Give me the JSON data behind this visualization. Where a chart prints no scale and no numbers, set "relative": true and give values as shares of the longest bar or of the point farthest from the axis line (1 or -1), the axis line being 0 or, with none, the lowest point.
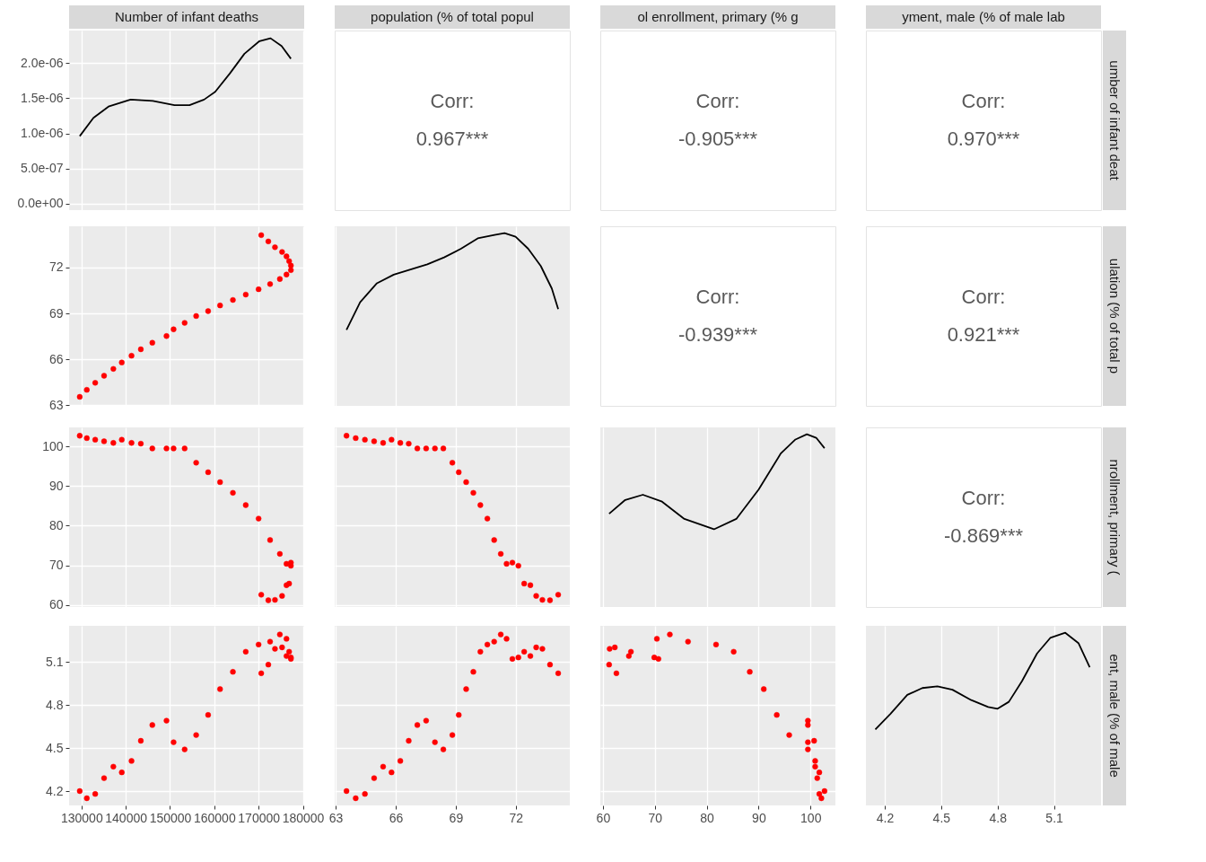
{
  "chart_data": [
    {
      "type": "line",
      "title": "Number of infant deaths",
      "x": [
        129600,
        132700,
        136100,
        141100,
        146100,
        151000,
        154400,
        157700,
        160200,
        163500,
        166800,
        170200,
        172700,
        175200,
        177300
      ],
      "series": [
        {
          "color": "#000000",
          "values": [
            9.6e-07,
            1.22e-06,
            1.38e-06,
            1.48e-06,
            1.46e-06,
            1.4e-06,
            1.4e-06,
            1.48e-06,
            1.59e-06,
            1.85e-06,
            2.13e-06,
            2.31e-06,
            2.35e-06,
            2.24e-06,
            2.06e-06
          ]
        }
      ],
      "xlim": [
        127200,
        180300
      ],
      "xticks": [
        130000,
        140000,
        150000,
        160000,
        170000,
        180000
      ],
      "ylim": [
        -9e-08,
        2.46e-06
      ],
      "yticks": [
        {
          "value": 0,
          "label": "0.0e+00"
        },
        {
          "value": 5e-07,
          "label": "5.0e-07"
        },
        {
          "value": 1e-06,
          "label": "1.0e-06"
        },
        {
          "value": 1.5e-06,
          "label": "1.5e-06"
        },
        {
          "value": 2e-06,
          "label": "2.0e-06"
        }
      ],
      "grid": true,
      "tick_labels": "y"
    },
    {
      "type": "other",
      "title": "population (% of total popul",
      "annotations": [
        "Corr:",
        "0.967***"
      ]
    },
    {
      "type": "other",
      "title": "ol enrollment, primary (% g",
      "annotations": [
        "Corr:",
        "-0.905***"
      ]
    },
    {
      "type": "other",
      "title": "yment, male (% of male lab",
      "y2label": "umber of infant deat",
      "annotations": [
        "Corr:",
        "0.970***"
      ]
    },
    {
      "type": "scatter",
      "marker": "circle",
      "x": [
        129600,
        131200,
        133100,
        135100,
        137200,
        139100,
        141300,
        143400,
        146000,
        149200,
        150800,
        153300,
        155900,
        158600,
        161300,
        164200,
        167100,
        170000,
        172600,
        174800,
        176300,
        177300,
        177300,
        176900,
        176300,
        175300,
        173700,
        172200,
        170600
      ],
      "series": [
        {
          "color": "#ff0000",
          "values": [
            63.54,
            64.0,
            64.46,
            64.92,
            65.37,
            65.79,
            66.23,
            66.65,
            67.08,
            67.52,
            67.96,
            68.38,
            68.83,
            69.15,
            69.52,
            69.88,
            70.23,
            70.58,
            70.92,
            71.25,
            71.54,
            71.83,
            72.13,
            72.42,
            72.73,
            73.02,
            73.33,
            73.71,
            74.12
          ]
        }
      ],
      "xlim": [
        127200,
        180300
      ],
      "xticks": [
        130000,
        140000,
        150000,
        160000,
        170000,
        180000
      ],
      "ylim": [
        62.95,
        74.7
      ],
      "yticks": [
        63,
        66,
        69,
        72
      ],
      "grid": true,
      "tick_labels": "y"
    },
    {
      "type": "line",
      "relative": true,
      "x": [
        63.54,
        64.22,
        65.06,
        65.9,
        66.74,
        67.58,
        68.42,
        69.26,
        70.1,
        70.94,
        71.44,
        71.99,
        72.62,
        73.25,
        73.8,
        74.12
      ],
      "series": [
        {
          "color": "#000000",
          "values": [
            0.44,
            0.6,
            0.71,
            0.76,
            0.79,
            0.82,
            0.86,
            0.91,
            0.97,
            0.99,
            1,
            0.98,
            0.91,
            0.81,
            0.68,
            0.56
          ]
        }
      ],
      "xlim": [
        62.95,
        74.7
      ],
      "xticks": [
        63,
        66,
        69,
        72
      ],
      "grid": "x",
      "tick_labels": false
    },
    {
      "type": "other",
      "annotations": [
        "Corr:",
        "-0.939***"
      ]
    },
    {
      "type": "other",
      "y2label": "ulation (% of total p",
      "annotations": [
        "Corr:",
        "0.921***"
      ]
    },
    {
      "type": "scatter",
      "marker": "circle",
      "x": [
        129600,
        131200,
        133100,
        135100,
        137200,
        139100,
        141300,
        143400,
        146000,
        149200,
        150800,
        153300,
        155900,
        158600,
        161300,
        164200,
        167100,
        170000,
        172600,
        174800,
        176300,
        177300,
        177300,
        176900,
        176300,
        175300,
        173700,
        172200,
        170600
      ],
      "series": [
        {
          "color": "#ff0000",
          "values": [
            102.7,
            102.1,
            101.7,
            101.3,
            100.9,
            101.7,
            100.9,
            100.7,
            99.5,
            99.5,
            99.5,
            99.5,
            95.9,
            93.5,
            91.0,
            88.3,
            85.2,
            81.8,
            76.4,
            72.9,
            70.4,
            70.7,
            69.9,
            65.4,
            65.0,
            62.3,
            61.3,
            61.2,
            62.6
          ]
        }
      ],
      "xlim": [
        127200,
        180300
      ],
      "xticks": [
        130000,
        140000,
        150000,
        160000,
        170000,
        180000
      ],
      "ylim": [
        59.5,
        104.8
      ],
      "yticks": [
        60,
        70,
        80,
        90,
        100
      ],
      "grid": true,
      "tick_labels": "y"
    },
    {
      "type": "scatter",
      "marker": "circle",
      "x": [
        63.54,
        64.0,
        64.46,
        64.92,
        65.37,
        65.79,
        66.23,
        66.65,
        67.08,
        67.52,
        67.96,
        68.38,
        68.83,
        69.15,
        69.52,
        69.88,
        70.23,
        70.58,
        70.92,
        71.25,
        71.54,
        71.83,
        72.13,
        72.42,
        72.73,
        73.02,
        73.33,
        73.71,
        74.12
      ],
      "series": [
        {
          "color": "#ff0000",
          "values": [
            102.7,
            102.1,
            101.7,
            101.3,
            100.9,
            101.7,
            100.9,
            100.7,
            99.5,
            99.5,
            99.5,
            99.5,
            95.9,
            93.5,
            91.0,
            88.3,
            85.2,
            81.8,
            76.4,
            72.9,
            70.4,
            70.7,
            69.9,
            65.4,
            65.0,
            62.3,
            61.3,
            61.2,
            62.6
          ]
        }
      ],
      "xlim": [
        62.95,
        74.7
      ],
      "xticks": [
        63,
        66,
        69,
        72
      ],
      "ylim": [
        59.5,
        104.8
      ],
      "yticks": [
        60,
        70,
        80,
        90,
        100
      ],
      "grid": true,
      "tick_labels": false
    },
    {
      "type": "line",
      "relative": true,
      "x": [
        61.2,
        64.3,
        67.7,
        71.4,
        75.7,
        81.4,
        85.7,
        90.0,
        94.3,
        97.1,
        99.3,
        101.1,
        102.7
      ],
      "series": [
        {
          "color": "#000000",
          "values": [
            0.54,
            0.62,
            0.65,
            0.61,
            0.51,
            0.45,
            0.51,
            0.68,
            0.89,
            0.97,
            1,
            0.98,
            0.92
          ]
        }
      ],
      "xlim": [
        59.5,
        104.8
      ],
      "xticks": [
        60,
        70,
        80,
        90,
        100
      ],
      "grid": "x",
      "tick_labels": false
    },
    {
      "type": "other",
      "y2label": "nrollment, primary (",
      "annotations": [
        "Corr:",
        "-0.869***"
      ]
    },
    {
      "type": "scatter",
      "marker": "circle",
      "x": [
        129600,
        131200,
        133100,
        135100,
        137200,
        139100,
        141300,
        143400,
        146000,
        149200,
        150800,
        153300,
        155900,
        158600,
        161300,
        164200,
        167100,
        170000,
        172600,
        174800,
        176300,
        177300,
        177300,
        176900,
        176300,
        175300,
        173700,
        172200,
        170600
      ],
      "series": [
        {
          "color": "#ff0000",
          "values": [
            4.2,
            4.15,
            4.18,
            4.29,
            4.37,
            4.33,
            4.41,
            4.55,
            4.66,
            4.69,
            4.54,
            4.49,
            4.59,
            4.73,
            4.91,
            5.03,
            5.17,
            5.22,
            5.24,
            5.29,
            5.26,
            5.12,
            5.13,
            5.17,
            5.14,
            5.2,
            5.19,
            5.08,
            5.02
          ]
        }
      ],
      "xlim": [
        127200,
        180300
      ],
      "xticks": [
        130000,
        140000,
        150000,
        160000,
        170000,
        180000
      ],
      "ylim": [
        4.1,
        5.35
      ],
      "yticks": [
        4.2,
        4.5,
        4.8,
        5.1
      ],
      "grid": true
    },
    {
      "type": "scatter",
      "marker": "circle",
      "x": [
        63.54,
        64.0,
        64.46,
        64.92,
        65.37,
        65.79,
        66.23,
        66.65,
        67.08,
        67.52,
        67.96,
        68.38,
        68.83,
        69.15,
        69.52,
        69.88,
        70.23,
        70.58,
        70.92,
        71.25,
        71.54,
        71.83,
        72.13,
        72.42,
        72.73,
        73.02,
        73.33,
        73.71,
        74.12
      ],
      "series": [
        {
          "color": "#ff0000",
          "values": [
            4.2,
            4.15,
            4.18,
            4.29,
            4.37,
            4.33,
            4.41,
            4.55,
            4.66,
            4.69,
            4.54,
            4.49,
            4.59,
            4.73,
            4.91,
            5.03,
            5.17,
            5.22,
            5.24,
            5.29,
            5.26,
            5.12,
            5.13,
            5.17,
            5.14,
            5.2,
            5.19,
            5.08,
            5.02
          ]
        }
      ],
      "xlim": [
        62.95,
        74.7
      ],
      "xticks": [
        63,
        66,
        69,
        72
      ],
      "ylim": [
        4.1,
        5.35
      ],
      "yticks": [
        4.2,
        4.5,
        4.8,
        5.1
      ],
      "grid": true,
      "tick_labels": "x"
    },
    {
      "type": "scatter",
      "marker": "circle",
      "x": [
        102.7,
        102.1,
        101.7,
        101.3,
        100.9,
        101.7,
        100.9,
        100.7,
        99.5,
        99.5,
        99.5,
        99.5,
        95.9,
        93.5,
        91.0,
        88.3,
        85.2,
        81.8,
        76.4,
        72.9,
        70.4,
        70.7,
        69.9,
        65.4,
        65.0,
        62.3,
        61.3,
        61.2,
        62.6
      ],
      "series": [
        {
          "color": "#ff0000",
          "values": [
            4.2,
            4.15,
            4.18,
            4.29,
            4.37,
            4.33,
            4.41,
            4.55,
            4.66,
            4.69,
            4.54,
            4.49,
            4.59,
            4.73,
            4.91,
            5.03,
            5.17,
            5.22,
            5.24,
            5.29,
            5.26,
            5.12,
            5.13,
            5.17,
            5.14,
            5.2,
            5.19,
            5.08,
            5.02
          ]
        }
      ],
      "xlim": [
        59.5,
        104.8
      ],
      "xticks": [
        60,
        70,
        80,
        90,
        100
      ],
      "ylim": [
        4.1,
        5.35
      ],
      "yticks": [
        4.2,
        4.5,
        4.8,
        5.1
      ],
      "grid": true,
      "tick_labels": "x"
    },
    {
      "type": "line",
      "relative": true,
      "y2label": "ent, male (% of male",
      "x": [
        4.15,
        4.23,
        4.32,
        4.4,
        4.48,
        4.56,
        4.66,
        4.75,
        4.8,
        4.86,
        4.93,
        5.01,
        5.08,
        5.16,
        5.23,
        5.29
      ],
      "series": [
        {
          "color": "#000000",
          "values": [
            0.44,
            0.53,
            0.64,
            0.68,
            0.69,
            0.67,
            0.61,
            0.57,
            0.56,
            0.6,
            0.72,
            0.88,
            0.97,
            1,
            0.94,
            0.8
          ]
        }
      ],
      "xlim": [
        4.1,
        5.35
      ],
      "xticks": [
        4.2,
        4.5,
        4.8,
        5.1
      ],
      "grid": "x",
      "tick_labels": "x"
    }
  ]
}
